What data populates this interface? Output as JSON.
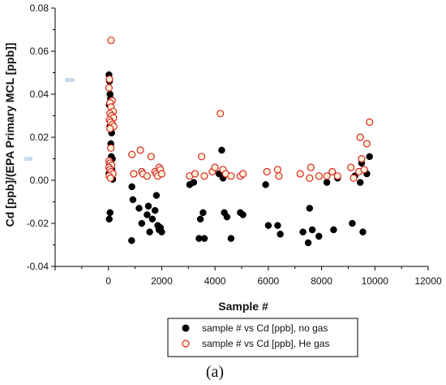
{
  "chart_data": {
    "type": "scatter",
    "title": "",
    "xlabel": "Sample #",
    "ylabel": "Cd [ppb]/(EPA Primary MCL [ppb]]",
    "xlim": [
      -2000,
      12000
    ],
    "ylim": [
      -0.04,
      0.08
    ],
    "x_ticks": [
      "0",
      "2000",
      "4000",
      "6000",
      "8000",
      "10000",
      "12000"
    ],
    "y_ticks": [
      "-0.04",
      "-0.02",
      "0.00",
      "0.02",
      "0.04",
      "0.06",
      "0.08"
    ],
    "grid": false,
    "legend_position": "bottom-center",
    "caption": "(a)",
    "series": [
      {
        "name": "sample # vs Cd [ppb], no gas",
        "marker": "filled-circle",
        "color": "#000000",
        "points": [
          [
            20,
            0.049
          ],
          [
            40,
            0.046
          ],
          [
            60,
            0.04
          ],
          [
            80,
            0.038
          ],
          [
            30,
            0.035
          ],
          [
            70,
            0.031
          ],
          [
            100,
            0.028
          ],
          [
            50,
            0.025
          ],
          [
            120,
            0.022
          ],
          [
            90,
            0.017
          ],
          [
            110,
            0.011
          ],
          [
            150,
            0.01
          ],
          [
            40,
            0.008
          ],
          [
            60,
            0.006
          ],
          [
            130,
            0.005
          ],
          [
            20,
            0.003
          ],
          [
            100,
            0.001
          ],
          [
            160,
            0.0005
          ],
          [
            60,
            -0.015
          ],
          [
            30,
            -0.018
          ],
          [
            880,
            -0.003
          ],
          [
            920,
            -0.009
          ],
          [
            870,
            -0.028
          ],
          [
            1150,
            -0.013
          ],
          [
            1250,
            -0.02
          ],
          [
            1450,
            -0.016
          ],
          [
            1500,
            -0.012
          ],
          [
            1550,
            -0.024
          ],
          [
            1650,
            -0.018
          ],
          [
            1750,
            -0.014
          ],
          [
            1800,
            -0.007
          ],
          [
            1850,
            -0.021
          ],
          [
            1900,
            -0.023
          ],
          [
            1950,
            -0.022
          ],
          [
            2000,
            -0.024
          ],
          [
            3050,
            -0.002
          ],
          [
            3200,
            -0.001
          ],
          [
            3400,
            -0.027
          ],
          [
            3450,
            -0.018
          ],
          [
            3550,
            -0.015
          ],
          [
            3600,
            -0.027
          ],
          [
            4150,
            0.003
          ],
          [
            4250,
            0.014
          ],
          [
            4300,
            0.001
          ],
          [
            4350,
            -0.015
          ],
          [
            4450,
            -0.017
          ],
          [
            4600,
            -0.027
          ],
          [
            4950,
            -0.015
          ],
          [
            5050,
            -0.016
          ],
          [
            5900,
            -0.002
          ],
          [
            6000,
            -0.021
          ],
          [
            6350,
            -0.021
          ],
          [
            6450,
            -0.025
          ],
          [
            7300,
            -0.024
          ],
          [
            7500,
            -0.029
          ],
          [
            7550,
            -0.013
          ],
          [
            7650,
            -0.023
          ],
          [
            7900,
            -0.026
          ],
          [
            8200,
            -0.001
          ],
          [
            8450,
            -0.023
          ],
          [
            8600,
            0.001
          ],
          [
            9150,
            -0.02
          ],
          [
            9250,
            0.002
          ],
          [
            9450,
            -0.001
          ],
          [
            9500,
            0.008
          ],
          [
            9550,
            -0.024
          ],
          [
            9700,
            0.003
          ],
          [
            9800,
            0.011
          ]
        ]
      },
      {
        "name": "sample # vs Cd [ppb], He gas",
        "marker": "open-circle",
        "color": "#d62728",
        "points": [
          [
            100,
            0.065
          ],
          [
            40,
            0.047
          ],
          [
            20,
            0.043
          ],
          [
            140,
            0.037
          ],
          [
            60,
            0.036
          ],
          [
            100,
            0.034
          ],
          [
            180,
            0.032
          ],
          [
            60,
            0.031
          ],
          [
            120,
            0.03
          ],
          [
            190,
            0.029
          ],
          [
            40,
            0.028
          ],
          [
            80,
            0.027
          ],
          [
            150,
            0.026
          ],
          [
            200,
            0.025
          ],
          [
            60,
            0.024
          ],
          [
            90,
            0.015
          ],
          [
            30,
            0.009
          ],
          [
            70,
            0.008
          ],
          [
            120,
            0.007
          ],
          [
            20,
            0.006
          ],
          [
            60,
            0.005
          ],
          [
            110,
            0.004
          ],
          [
            170,
            0.003
          ],
          [
            30,
            0.002
          ],
          [
            80,
            0.001
          ],
          [
            880,
            0.012
          ],
          [
            950,
            0.003
          ],
          [
            1200,
            0.014
          ],
          [
            1250,
            0.004
          ],
          [
            1300,
            0.003
          ],
          [
            1450,
            0.002
          ],
          [
            1600,
            0.011
          ],
          [
            1750,
            0.004
          ],
          [
            1800,
            0.003
          ],
          [
            1850,
            0.002
          ],
          [
            1900,
            0.006
          ],
          [
            1950,
            0.005
          ],
          [
            2000,
            0.003
          ],
          [
            3050,
            0.002
          ],
          [
            3250,
            0.003
          ],
          [
            3500,
            0.011
          ],
          [
            3600,
            0.002
          ],
          [
            3900,
            0.004
          ],
          [
            4000,
            0.006
          ],
          [
            4200,
            0.031
          ],
          [
            4300,
            0.005
          ],
          [
            4400,
            0.003
          ],
          [
            4600,
            0.002
          ],
          [
            4950,
            0.002
          ],
          [
            5050,
            0.003
          ],
          [
            5950,
            0.004
          ],
          [
            6350,
            0.005
          ],
          [
            6400,
            0.002
          ],
          [
            7200,
            0.003
          ],
          [
            7550,
            0.001
          ],
          [
            7600,
            0.006
          ],
          [
            7900,
            0.002
          ],
          [
            8200,
            0.002
          ],
          [
            8400,
            0.004
          ],
          [
            8600,
            0.002
          ],
          [
            9100,
            0.006
          ],
          [
            9200,
            0.001
          ],
          [
            9400,
            0.004
          ],
          [
            9450,
            0.02
          ],
          [
            9500,
            0.01
          ],
          [
            9600,
            0.005
          ],
          [
            9700,
            0.017
          ],
          [
            9800,
            0.027
          ]
        ]
      }
    ]
  }
}
